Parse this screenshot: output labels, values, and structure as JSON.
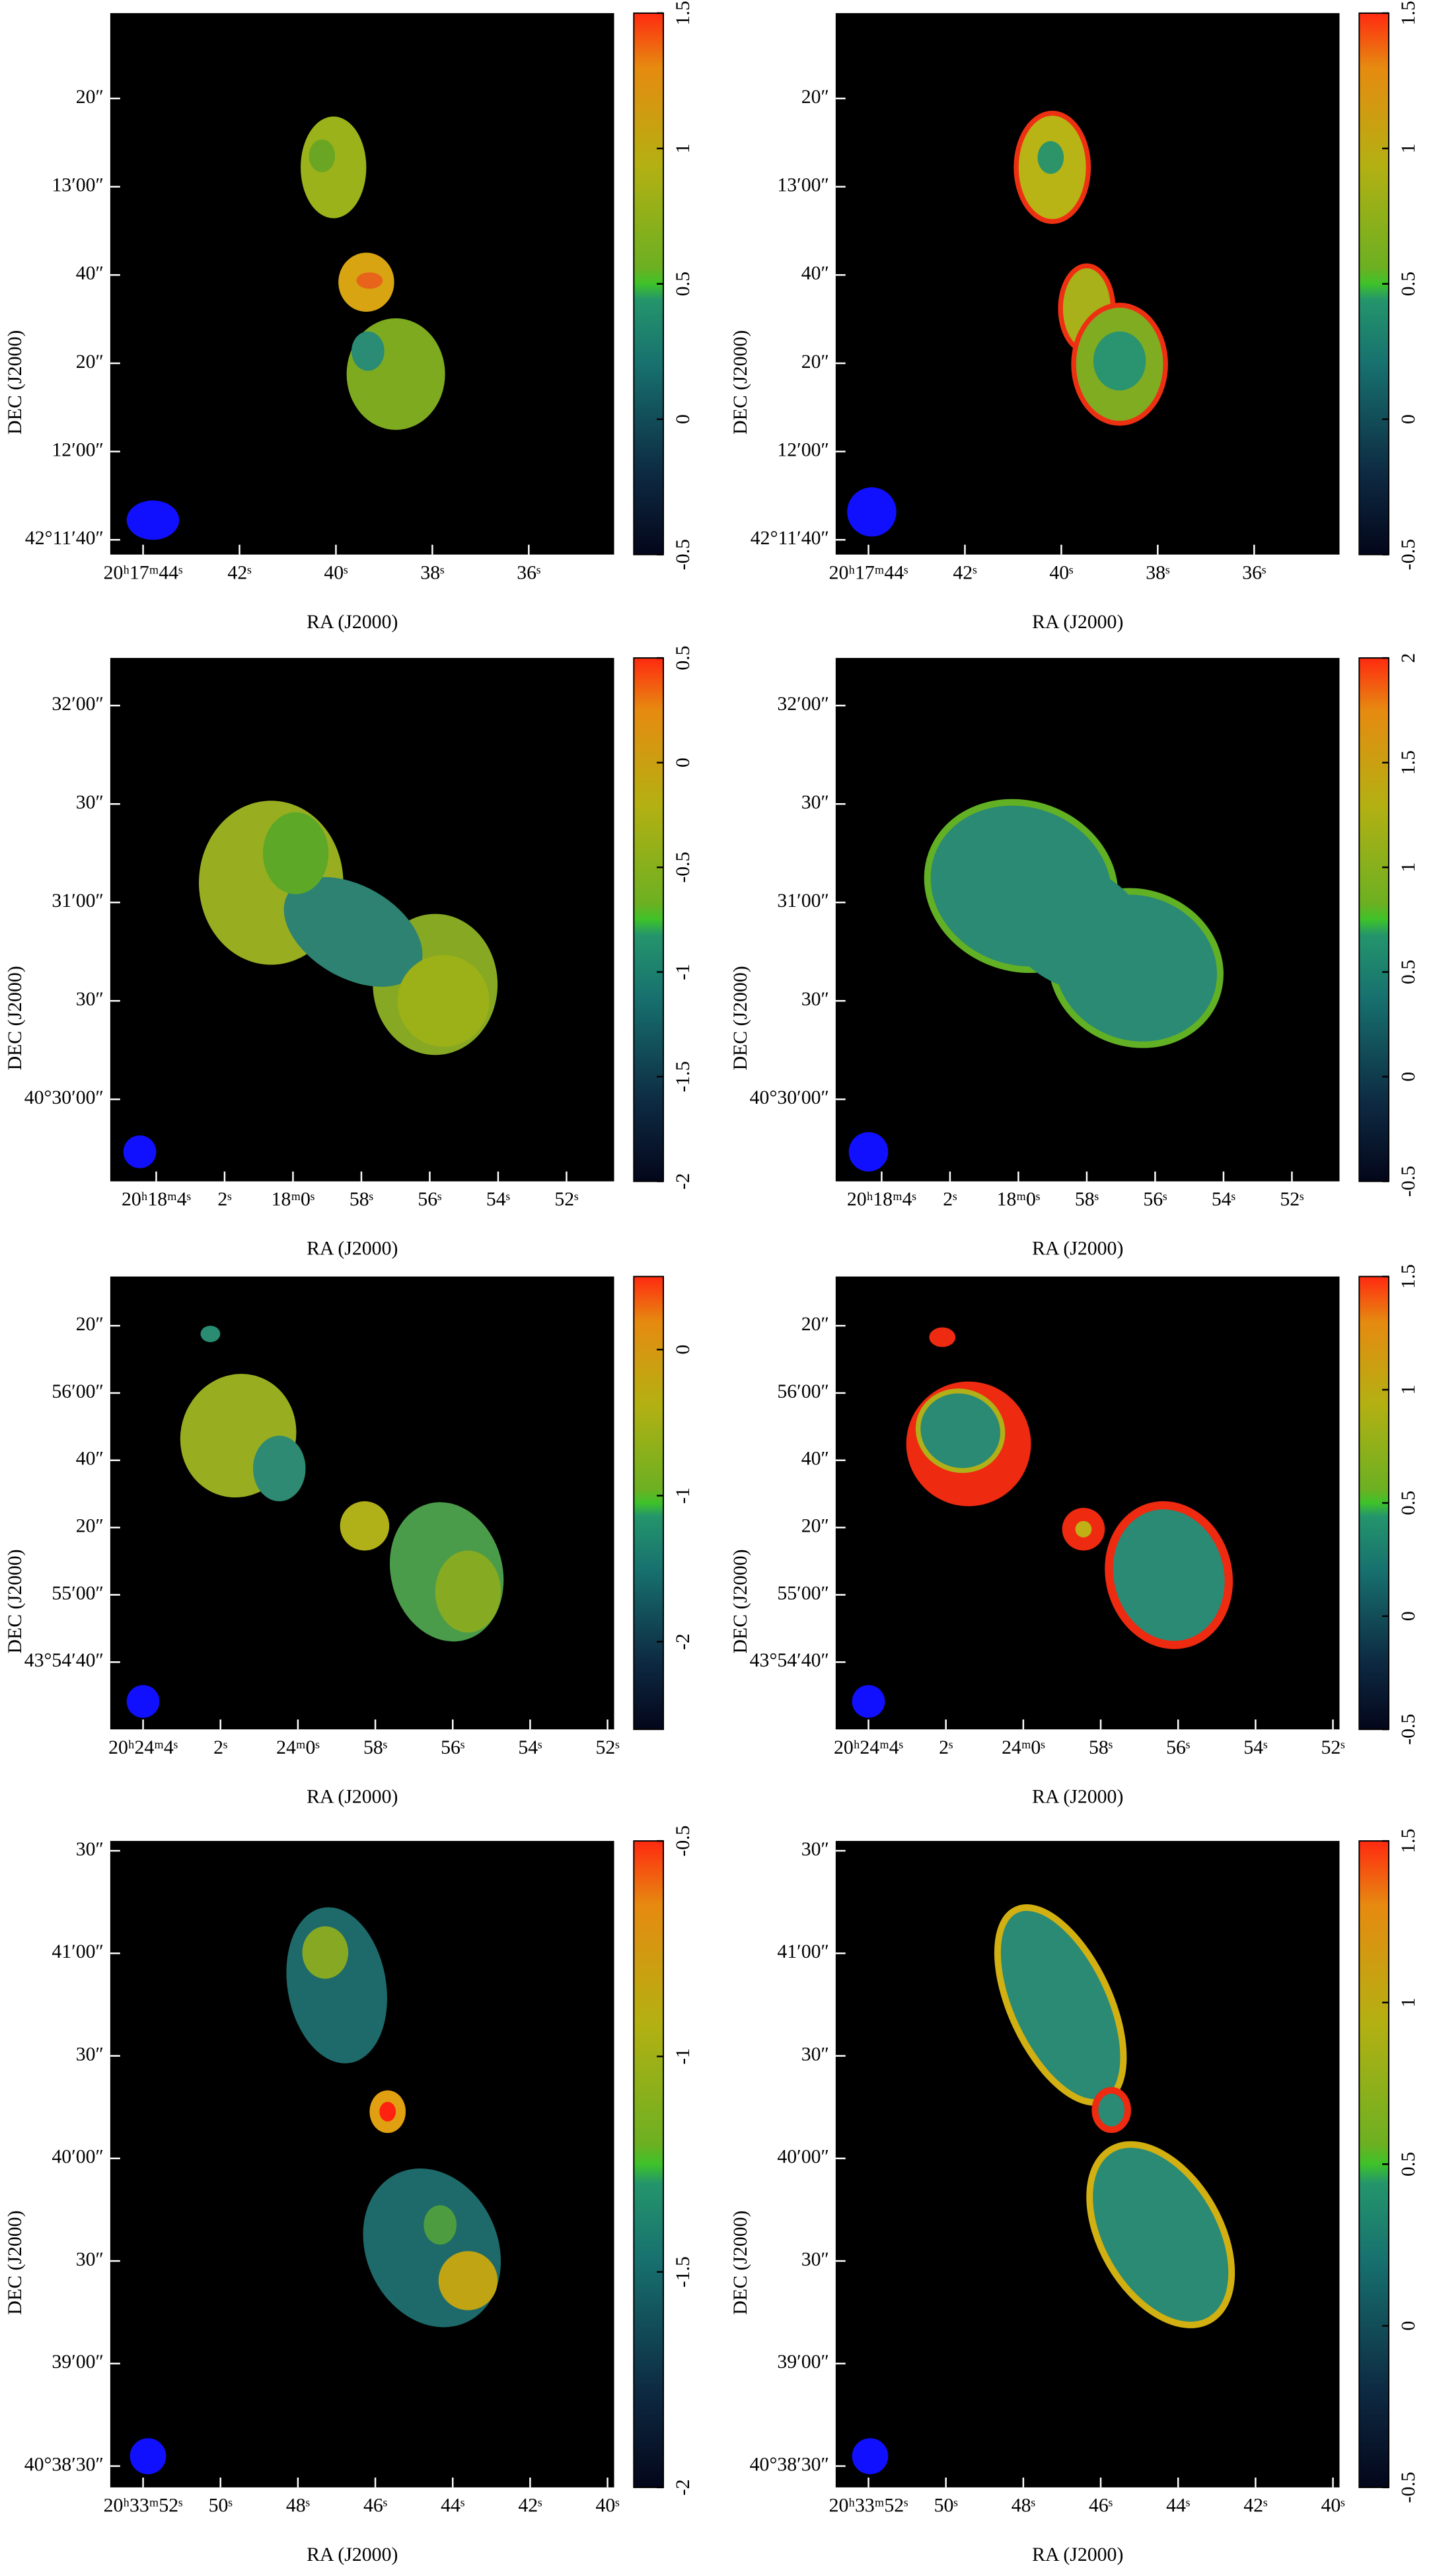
{
  "chart_data": [
    {
      "type": "image",
      "xlabel": "RA (J2000)",
      "ylabel": "DEC (J2000)",
      "xtick_labels": [
        "20ʰ17ᵐ44ˢ",
        "42ˢ",
        "40ˢ",
        "38ˢ",
        "36ˢ"
      ],
      "ytick_labels": [
        "20″",
        "13′00″",
        "40″",
        "20″",
        "12′00″",
        "42°11′40″"
      ],
      "clim": [
        -0.5,
        1.5
      ],
      "cticks": [
        -0.5,
        0,
        0.5,
        1,
        1.5
      ]
    },
    {
      "type": "image",
      "xlabel": "RA (J2000)",
      "ylabel": "DEC (J2000)",
      "xtick_labels": [
        "20ʰ17ᵐ44ˢ",
        "42ˢ",
        "40ˢ",
        "38ˢ",
        "36ˢ"
      ],
      "ytick_labels": [
        "20″",
        "13′00″",
        "40″",
        "20″",
        "12′00″",
        "42°11′40″"
      ],
      "clim": [
        -0.5,
        1.5
      ],
      "cticks": [
        -0.5,
        0,
        0.5,
        1,
        1.5
      ]
    },
    {
      "type": "image",
      "xlabel": "RA (J2000)",
      "ylabel": "DEC (J2000)",
      "xtick_labels": [
        "20ʰ18ᵐ4ˢ",
        "2ˢ",
        "18ᵐ0ˢ",
        "58ˢ",
        "56ˢ",
        "54ˢ",
        "52ˢ"
      ],
      "ytick_labels": [
        "32′00″",
        "30″",
        "31′00″",
        "30″",
        "40°30′00″"
      ],
      "clim": [
        -2,
        0.5
      ],
      "cticks": [
        -2,
        -1.5,
        -1,
        -0.5,
        0,
        0.5
      ]
    },
    {
      "type": "image",
      "xlabel": "RA (J2000)",
      "ylabel": "DEC (J2000)",
      "xtick_labels": [
        "20ʰ18ᵐ4ˢ",
        "2ˢ",
        "18ᵐ0ˢ",
        "58ˢ",
        "56ˢ",
        "54ˢ",
        "52ˢ"
      ],
      "ytick_labels": [
        "32′00″",
        "30″",
        "31′00″",
        "30″",
        "40°30′00″"
      ],
      "clim": [
        -0.5,
        2
      ],
      "cticks": [
        -0.5,
        0,
        0.5,
        1,
        1.5,
        2
      ]
    },
    {
      "type": "image",
      "xlabel": "RA (J2000)",
      "ylabel": "DEC (J2000)",
      "xtick_labels": [
        "20ʰ24ᵐ4ˢ",
        "2ˢ",
        "24ᵐ0ˢ",
        "58ˢ",
        "56ˢ",
        "54ˢ",
        "52ˢ"
      ],
      "ytick_labels": [
        "20″",
        "56′00″",
        "40″",
        "20″",
        "55′00″",
        "43°54′40″"
      ],
      "clim": [
        -2.6,
        0.5
      ],
      "cticks": [
        -2,
        -1,
        0
      ]
    },
    {
      "type": "image",
      "xlabel": "RA (J2000)",
      "ylabel": "DEC (J2000)",
      "xtick_labels": [
        "20ʰ24ᵐ4ˢ",
        "2ˢ",
        "24ᵐ0ˢ",
        "58ˢ",
        "56ˢ",
        "54ˢ",
        "52ˢ"
      ],
      "ytick_labels": [
        "20″",
        "56′00″",
        "40″",
        "20″",
        "55′00″",
        "43°54′40″"
      ],
      "clim": [
        -0.5,
        1.5
      ],
      "cticks": [
        -0.5,
        0,
        0.5,
        1,
        1.5
      ]
    },
    {
      "type": "image",
      "xlabel": "RA (J2000)",
      "ylabel": "DEC (J2000)",
      "xtick_labels": [
        "20ʰ33ᵐ52ˢ",
        "50ˢ",
        "48ˢ",
        "46ˢ",
        "44ˢ",
        "42ˢ",
        "40ˢ"
      ],
      "ytick_labels": [
        "30″",
        "41′00″",
        "30″",
        "40′00″",
        "30″",
        "39′00″",
        "40°38′30″"
      ],
      "clim": [
        -2,
        -0.5
      ],
      "cticks": [
        -2,
        -1.5,
        -1,
        -0.5
      ]
    },
    {
      "type": "image",
      "xlabel": "RA (J2000)",
      "ylabel": "DEC (J2000)",
      "xtick_labels": [
        "20ʰ33ᵐ52ˢ",
        "50ˢ",
        "48ˢ",
        "46ˢ",
        "44ˢ",
        "42ˢ",
        "40ˢ"
      ],
      "ytick_labels": [
        "30″",
        "41′00″",
        "30″",
        "40′00″",
        "30″",
        "39′00″",
        "40°38′30″"
      ],
      "clim": [
        -0.5,
        1.5
      ],
      "cticks": [
        -0.5,
        0,
        0.5,
        1,
        1.5
      ]
    }
  ]
}
